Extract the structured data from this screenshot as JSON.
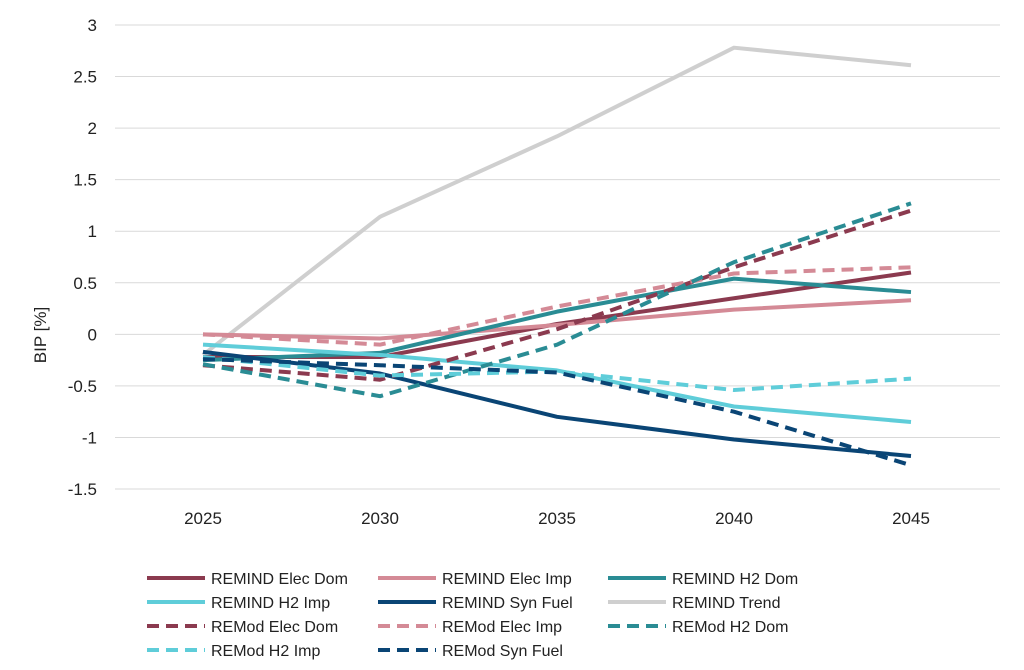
{
  "chart_data": {
    "type": "line",
    "title": "",
    "xlabel": "",
    "ylabel": "BIP [%]",
    "x": [
      "2025",
      "2030",
      "2035",
      "2040",
      "2045"
    ],
    "ylim": [
      -1.5,
      3
    ],
    "yticks": [
      "3",
      "2.5",
      "2",
      "1.5",
      "1",
      "0.5",
      "0",
      "-0.5",
      "-1",
      "-1.5"
    ],
    "ytick_values": [
      3,
      2.5,
      2,
      1.5,
      1,
      0.5,
      0,
      -0.5,
      -1,
      -1.5
    ],
    "grid": "horizontal",
    "legend_position": "bottom",
    "series": [
      {
        "name": "REMIND Elec Dom",
        "color": "#8b3a4f",
        "dash": "solid",
        "values": [
          -0.22,
          -0.22,
          0.1,
          0.35,
          0.6
        ]
      },
      {
        "name": "REMIND Elec Imp",
        "color": "#d48a96",
        "dash": "solid",
        "values": [
          0.0,
          -0.04,
          0.09,
          0.24,
          0.33
        ]
      },
      {
        "name": "REMIND H2 Dom",
        "color": "#2a8c94",
        "dash": "solid",
        "values": [
          -0.25,
          -0.18,
          0.22,
          0.54,
          0.41
        ]
      },
      {
        "name": "REMIND H2 Imp",
        "color": "#5fcdd9",
        "dash": "solid",
        "values": [
          -0.1,
          -0.2,
          -0.35,
          -0.7,
          -0.85
        ]
      },
      {
        "name": "REMIND Syn Fuel",
        "color": "#0a4575",
        "dash": "solid",
        "values": [
          -0.17,
          -0.38,
          -0.8,
          -1.02,
          -1.18
        ]
      },
      {
        "name": "REMIND Trend",
        "color": "#cfcfcf",
        "dash": "solid",
        "values": [
          -0.2,
          1.14,
          1.92,
          2.78,
          2.61
        ]
      },
      {
        "name": "REMod Elec Dom",
        "color": "#8b3a4f",
        "dash": "dashed",
        "values": [
          -0.3,
          -0.44,
          0.05,
          0.65,
          1.2
        ]
      },
      {
        "name": "REMod Elec Imp",
        "color": "#d48a96",
        "dash": "dashed",
        "values": [
          0.0,
          -0.1,
          0.27,
          0.59,
          0.65
        ]
      },
      {
        "name": "REMod H2 Dom",
        "color": "#2a8c94",
        "dash": "dashed",
        "values": [
          -0.29,
          -0.6,
          -0.1,
          0.7,
          1.27
        ]
      },
      {
        "name": "REMod H2 Imp",
        "color": "#5fcdd9",
        "dash": "dashed",
        "values": [
          -0.22,
          -0.4,
          -0.36,
          -0.54,
          -0.43
        ]
      },
      {
        "name": "REMod Syn Fuel",
        "color": "#0a4575",
        "dash": "dashed",
        "values": [
          -0.24,
          -0.3,
          -0.37,
          -0.75,
          -1.27
        ]
      }
    ]
  }
}
